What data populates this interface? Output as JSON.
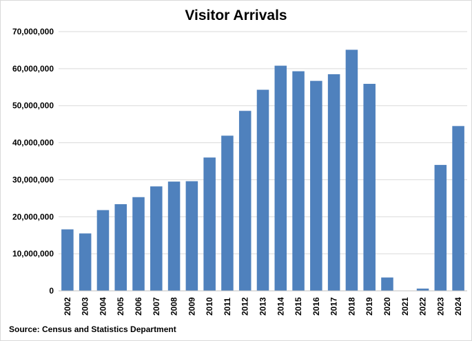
{
  "chart_data": {
    "type": "bar",
    "title": "Visitor Arrivals",
    "source": "Source: Census and Statistics Department",
    "categories": [
      "2002",
      "2003",
      "2004",
      "2005",
      "2006",
      "2007",
      "2008",
      "2009",
      "2010",
      "2011",
      "2012",
      "2013",
      "2014",
      "2015",
      "2016",
      "2017",
      "2018",
      "2019",
      "2020",
      "2021",
      "2022",
      "2023",
      "2024"
    ],
    "values": [
      16600000,
      15500000,
      21800000,
      23400000,
      25300000,
      28200000,
      29500000,
      29600000,
      36000000,
      41900000,
      48600000,
      54300000,
      60800000,
      59300000,
      56700000,
      58500000,
      65100000,
      55900000,
      3600000,
      91000,
      605000,
      34000000,
      44500000
    ],
    "ylim": [
      0,
      70000000
    ],
    "yticks": [
      0,
      10000000,
      20000000,
      30000000,
      40000000,
      50000000,
      60000000,
      70000000
    ],
    "ytick_labels": [
      "0",
      "10,000,000",
      "20,000,000",
      "30,000,000",
      "40,000,000",
      "50,000,000",
      "60,000,000",
      "70,000,000"
    ],
    "grid": true,
    "bar_color": "#4f81bd",
    "grid_color": "#d9d9d9",
    "xlabel": "",
    "ylabel": ""
  }
}
